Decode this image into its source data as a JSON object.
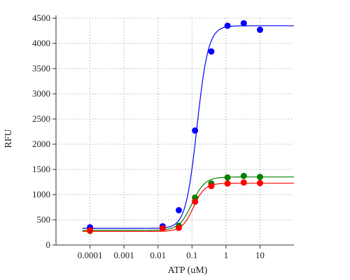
{
  "chart_data": {
    "type": "scatter",
    "xlabel": "ATP (uM)",
    "ylabel": "RFU",
    "xscale": "log",
    "xlim": [
      1e-05,
      100
    ],
    "ylim": [
      0,
      4500
    ],
    "grid": true,
    "xticks": [
      {
        "value": 0.0001,
        "label": "0.0001"
      },
      {
        "value": 0.001,
        "label": "0.001"
      },
      {
        "value": 0.01,
        "label": "0.01"
      },
      {
        "value": 0.1,
        "label": "0.1"
      },
      {
        "value": 1,
        "label": "1"
      },
      {
        "value": 10,
        "label": "10"
      }
    ],
    "yticks": [
      0,
      500,
      1000,
      1500,
      2000,
      2500,
      3000,
      3500,
      4000,
      4500
    ],
    "series": [
      {
        "color": "#0000ff",
        "points": [
          {
            "x": 0.0001,
            "y": 350
          },
          {
            "x": 0.0137,
            "y": 370
          },
          {
            "x": 0.041,
            "y": 690
          },
          {
            "x": 0.123,
            "y": 2270
          },
          {
            "x": 0.37,
            "y": 3840
          },
          {
            "x": 1.11,
            "y": 4350
          },
          {
            "x": 3.33,
            "y": 4400
          },
          {
            "x": 10,
            "y": 4270
          }
        ],
        "fit": {
          "bottom": 330,
          "top": 4350,
          "ec50": 0.14,
          "hill": 2.6
        }
      },
      {
        "color": "#008000",
        "points": [
          {
            "x": 0.0001,
            "y": 280
          },
          {
            "x": 0.0137,
            "y": 330
          },
          {
            "x": 0.041,
            "y": 380
          },
          {
            "x": 0.123,
            "y": 940
          },
          {
            "x": 0.37,
            "y": 1220
          },
          {
            "x": 1.11,
            "y": 1340
          },
          {
            "x": 3.33,
            "y": 1370
          },
          {
            "x": 10,
            "y": 1350
          }
        ],
        "fit": {
          "bottom": 290,
          "top": 1350,
          "ec50": 0.1,
          "hill": 2.3
        }
      },
      {
        "color": "#ff0000",
        "points": [
          {
            "x": 0.0001,
            "y": 290
          },
          {
            "x": 0.0137,
            "y": 330
          },
          {
            "x": 0.041,
            "y": 340
          },
          {
            "x": 0.123,
            "y": 860
          },
          {
            "x": 0.37,
            "y": 1170
          },
          {
            "x": 1.11,
            "y": 1220
          },
          {
            "x": 3.33,
            "y": 1240
          },
          {
            "x": 10,
            "y": 1230
          }
        ],
        "fit": {
          "bottom": 270,
          "top": 1225,
          "ec50": 0.11,
          "hill": 2.6
        }
      }
    ]
  }
}
